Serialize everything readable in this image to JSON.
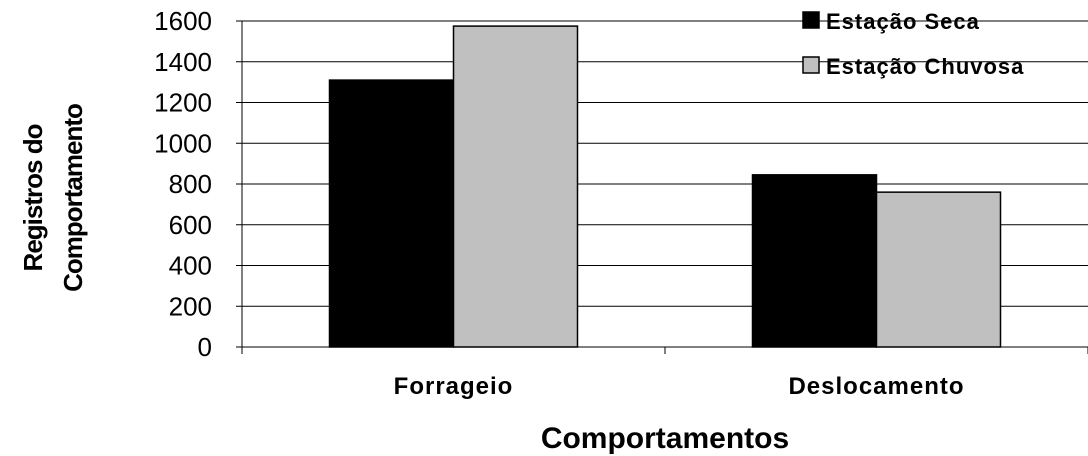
{
  "chart_data": {
    "type": "bar",
    "categories": [
      "Forrageio",
      "Deslocamento"
    ],
    "series": [
      {
        "name": "Estação Seca",
        "values": [
          1310,
          845
        ],
        "color": "#000000"
      },
      {
        "name": "Estação Chuvosa",
        "values": [
          1575,
          760
        ],
        "color": "#c0c0c0"
      }
    ],
    "xlabel": "Comportamentos",
    "ylabel_lines": [
      "Registros do",
      "Comportamento"
    ],
    "ylim": [
      0,
      1600
    ],
    "yticks": [
      0,
      200,
      400,
      600,
      800,
      1000,
      1200,
      1400,
      1600
    ],
    "grid": true,
    "legend_position": "top-right"
  }
}
